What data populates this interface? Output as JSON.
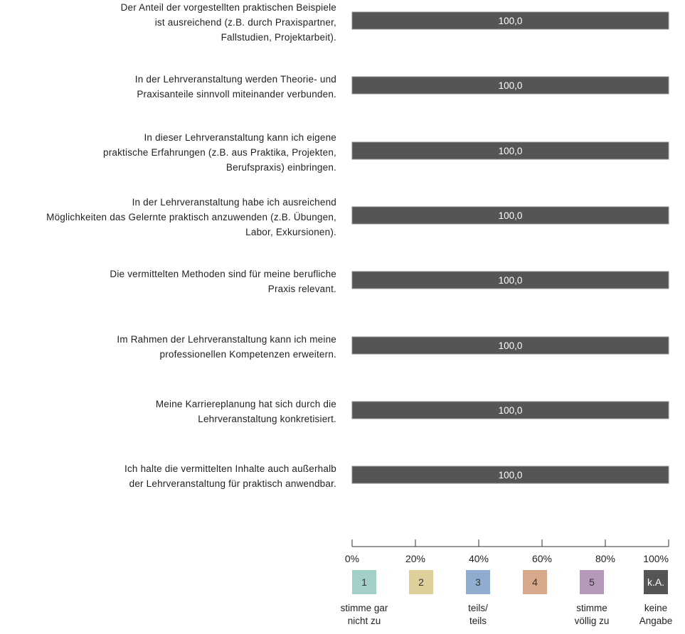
{
  "chart_data": {
    "type": "bar",
    "orientation": "horizontal",
    "stacked": true,
    "categories": [
      "Der Anteil der vorgestellten praktischen Beispiele ist ausreichend (z.B. durch Praxispartner, Fallstudien, Projektarbeit).",
      "In der Lehrveranstaltung werden Theorie- und Praxisanteile sinnvoll miteinander verbunden.",
      "In dieser Lehrveranstaltung kann ich eigene praktische Erfahrungen (z.B. aus Praktika, Projekten, Berufspraxis) einbringen.",
      "In der Lehrveranstaltung habe ich ausreichend Möglichkeiten das Gelernte praktisch anzuwenden (z.B. Übungen, Labor, Exkursionen).",
      "Die vermittelten Methoden sind für meine berufliche Praxis relevant.",
      "Im Rahmen der Lehrveranstaltung kann ich meine professionellen Kompetenzen erweitern.",
      "Meine Karriereplanung hat sich durch die Lehrveranstaltung konkretisiert.",
      "Ich halte die vermittelten Inhalte auch außerhalb der Lehrveranstaltung für praktisch anwendbar."
    ],
    "label_lines": [
      [
        "Der Anteil der vorgestellten praktischen Beispiele",
        "ist ausreichend (z.B. durch Praxispartner,",
        "Fallstudien, Projektarbeit)."
      ],
      [
        "In der Lehrveranstaltung werden Theorie- und",
        "Praxisanteile sinnvoll miteinander verbunden."
      ],
      [
        "In dieser Lehrveranstaltung kann ich eigene",
        "praktische Erfahrungen (z.B. aus Praktika, Projekten,",
        "Berufspraxis) einbringen."
      ],
      [
        "In der Lehrveranstaltung habe ich ausreichend",
        "Möglichkeiten das Gelernte praktisch anzuwenden (z.B. Übungen,",
        "Labor, Exkursionen)."
      ],
      [
        "Die vermittelten Methoden sind für meine berufliche",
        "Praxis relevant."
      ],
      [
        "Im Rahmen der Lehrveranstaltung kann ich meine",
        "professionellen Kompetenzen erweitern."
      ],
      [
        "Meine Karriereplanung hat sich durch die",
        "Lehrveranstaltung konkretisiert."
      ],
      [
        "Ich halte die vermittelten Inhalte auch außerhalb",
        "der Lehrveranstaltung für praktisch anwendbar."
      ]
    ],
    "series": [
      {
        "name": "1",
        "color": "#a3cfc9",
        "values": [
          0,
          0,
          0,
          0,
          0,
          0,
          0,
          0
        ]
      },
      {
        "name": "2",
        "color": "#ddd09a",
        "values": [
          0,
          0,
          0,
          0,
          0,
          0,
          0,
          0
        ]
      },
      {
        "name": "3",
        "color": "#90acd0",
        "values": [
          0,
          0,
          0,
          0,
          0,
          0,
          0,
          0
        ]
      },
      {
        "name": "4",
        "color": "#d7a98a",
        "values": [
          0,
          0,
          0,
          0,
          0,
          0,
          0,
          0
        ]
      },
      {
        "name": "5",
        "color": "#b49ab8",
        "values": [
          0,
          0,
          0,
          0,
          0,
          0,
          0,
          0
        ]
      },
      {
        "name": "k.A.",
        "color": "#555555",
        "values": [
          100.0,
          100.0,
          100.0,
          100.0,
          100.0,
          100.0,
          100.0,
          100.0
        ]
      }
    ],
    "data_labels": [
      "100,0",
      "100,0",
      "100,0",
      "100,0",
      "100,0",
      "100,0",
      "100,0",
      "100,0"
    ],
    "xlim": [
      0,
      100
    ],
    "xticks": [
      0,
      20,
      40,
      60,
      80,
      100
    ],
    "xtick_labels": [
      "0%",
      "20%",
      "40%",
      "60%",
      "80%",
      "100%"
    ],
    "grid": false,
    "legend": {
      "placement": "bottom",
      "items": [
        {
          "key": "1",
          "color": "#a3cfc9",
          "text": "stimme gar\nnicht zu"
        },
        {
          "key": "2",
          "color": "#ddd09a",
          "text": ""
        },
        {
          "key": "3",
          "color": "#90acd0",
          "text": "teils/\nteils"
        },
        {
          "key": "4",
          "color": "#d7a98a",
          "text": ""
        },
        {
          "key": "5",
          "color": "#b49ab8",
          "text": "stimme\nvöllig zu"
        },
        {
          "key": "k.A.",
          "color": "#555555",
          "text": "keine\nAngabe"
        }
      ]
    }
  }
}
